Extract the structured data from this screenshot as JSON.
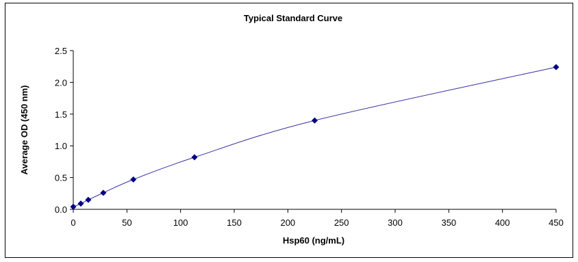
{
  "chart_data": {
    "type": "scatter",
    "title": "Typical Standard Curve",
    "xlabel": "Hsp60 (ng/mL)",
    "ylabel": "Average OD (450 nm)",
    "xlim": [
      0,
      450
    ],
    "ylim": [
      0,
      2.5
    ],
    "x_ticks": [
      "0",
      "50",
      "100",
      "150",
      "200",
      "250",
      "300",
      "350",
      "400",
      "450"
    ],
    "y_ticks": [
      "0.0",
      "0.5",
      "1.0",
      "1.5",
      "2.0",
      "2.5"
    ],
    "grid": false,
    "legend": "none",
    "series": [
      {
        "x": [
          0,
          7,
          14,
          28,
          56,
          113,
          225,
          450
        ],
        "y": [
          0.04,
          0.09,
          0.15,
          0.26,
          0.47,
          0.82,
          1.4,
          2.24
        ]
      }
    ],
    "colors": {
      "marker": "#000080",
      "curve": "#3333a0",
      "axis": "#000000"
    }
  }
}
